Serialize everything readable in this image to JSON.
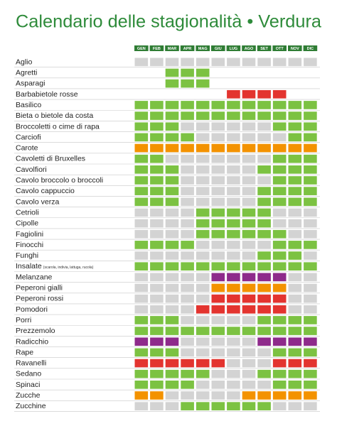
{
  "title": "Calendario delle stagionalità • Verdura",
  "months": [
    "GEN",
    "FEB",
    "MAR",
    "APR",
    "MAG",
    "GIU",
    "LUG",
    "AGO",
    "SET",
    "OTT",
    "NOV",
    "DIC"
  ],
  "rows": [
    {
      "name": "Aglio",
      "color": "#7cc242",
      "season": [
        0,
        0,
        0,
        0,
        0,
        0,
        0,
        0,
        0,
        0,
        0,
        0
      ]
    },
    {
      "name": "Agretti",
      "color": "#7cc242",
      "season": [
        null,
        null,
        1,
        1,
        1,
        null,
        null,
        null,
        null,
        null,
        null,
        null
      ]
    },
    {
      "name": "Asparagi",
      "color": "#7cc242",
      "season": [
        null,
        null,
        1,
        1,
        1,
        null,
        null,
        null,
        null,
        null,
        null,
        null
      ]
    },
    {
      "name": "Barbabietole rosse",
      "color": "#e3342f",
      "season": [
        null,
        null,
        null,
        null,
        null,
        null,
        1,
        1,
        1,
        1,
        null,
        null
      ]
    },
    {
      "name": "Basilico",
      "color": "#7cc242",
      "season": [
        1,
        1,
        1,
        1,
        1,
        1,
        1,
        1,
        1,
        1,
        1,
        1
      ]
    },
    {
      "name": "Bieta o bietole da costa",
      "color": "#7cc242",
      "season": [
        1,
        1,
        1,
        1,
        1,
        1,
        1,
        1,
        1,
        1,
        1,
        1
      ]
    },
    {
      "name": "Broccoletti o cime di rapa",
      "color": "#7cc242",
      "season": [
        1,
        1,
        1,
        0,
        0,
        0,
        0,
        0,
        0,
        1,
        1,
        1
      ]
    },
    {
      "name": "Carciofi",
      "color": "#7cc242",
      "season": [
        1,
        1,
        1,
        1,
        0,
        0,
        0,
        0,
        0,
        0,
        1,
        1
      ]
    },
    {
      "name": "Carote",
      "color": "#f39200",
      "season": [
        1,
        1,
        1,
        1,
        1,
        1,
        1,
        1,
        1,
        1,
        1,
        1
      ]
    },
    {
      "name": "Cavoletti di Bruxelles",
      "color": "#7cc242",
      "season": [
        1,
        1,
        0,
        0,
        0,
        0,
        0,
        0,
        0,
        1,
        1,
        1
      ]
    },
    {
      "name": "Cavolfiori",
      "color": "#7cc242",
      "season": [
        1,
        1,
        1,
        0,
        0,
        0,
        0,
        0,
        1,
        1,
        1,
        1
      ]
    },
    {
      "name": "Cavolo broccolo o broccoli",
      "color": "#7cc242",
      "season": [
        1,
        1,
        1,
        0,
        0,
        0,
        0,
        0,
        0,
        1,
        1,
        1
      ]
    },
    {
      "name": "Cavolo cappuccio",
      "color": "#7cc242",
      "season": [
        1,
        1,
        1,
        0,
        0,
        0,
        0,
        0,
        1,
        1,
        1,
        1
      ]
    },
    {
      "name": "Cavolo verza",
      "color": "#7cc242",
      "season": [
        1,
        1,
        1,
        0,
        0,
        0,
        0,
        0,
        1,
        1,
        1,
        1
      ]
    },
    {
      "name": "Cetrioli",
      "color": "#7cc242",
      "season": [
        0,
        0,
        0,
        0,
        1,
        1,
        1,
        1,
        1,
        0,
        0,
        0
      ]
    },
    {
      "name": "Cipolle",
      "color": "#7cc242",
      "season": [
        0,
        0,
        0,
        0,
        1,
        1,
        1,
        1,
        1,
        0,
        0,
        0
      ]
    },
    {
      "name": "Fagiolini",
      "color": "#7cc242",
      "season": [
        0,
        0,
        0,
        0,
        1,
        1,
        1,
        1,
        1,
        1,
        0,
        0
      ]
    },
    {
      "name": "Finocchi",
      "color": "#7cc242",
      "season": [
        1,
        1,
        1,
        1,
        0,
        0,
        0,
        0,
        0,
        1,
        1,
        1
      ]
    },
    {
      "name": "Funghi",
      "color": "#7cc242",
      "season": [
        0,
        0,
        0,
        0,
        0,
        0,
        0,
        0,
        1,
        1,
        1,
        0
      ]
    },
    {
      "name": "Insalate",
      "note": "(scarola, indivia, lattuga, rucola)",
      "color": "#7cc242",
      "season": [
        1,
        1,
        1,
        1,
        1,
        1,
        1,
        1,
        1,
        1,
        1,
        1
      ]
    },
    {
      "name": "Melanzane",
      "color": "#8e2a8b",
      "season": [
        0,
        0,
        0,
        0,
        0,
        1,
        1,
        1,
        1,
        1,
        0,
        0
      ]
    },
    {
      "name": "Peperoni gialli",
      "color": "#f39200",
      "season": [
        0,
        0,
        0,
        0,
        0,
        1,
        1,
        1,
        1,
        1,
        0,
        0
      ]
    },
    {
      "name": "Peperoni rossi",
      "color": "#e3342f",
      "season": [
        0,
        0,
        0,
        0,
        0,
        1,
        1,
        1,
        1,
        1,
        0,
        0
      ]
    },
    {
      "name": "Pomodori",
      "color": "#e3342f",
      "season": [
        0,
        0,
        0,
        0,
        1,
        1,
        1,
        1,
        1,
        1,
        0,
        0
      ]
    },
    {
      "name": "Porri",
      "color": "#7cc242",
      "season": [
        1,
        1,
        1,
        0,
        0,
        0,
        0,
        0,
        1,
        1,
        1,
        1
      ]
    },
    {
      "name": "Prezzemolo",
      "color": "#7cc242",
      "season": [
        1,
        1,
        1,
        1,
        1,
        1,
        1,
        1,
        1,
        1,
        1,
        1
      ]
    },
    {
      "name": "Radicchio",
      "color": "#8e2a8b",
      "season": [
        1,
        1,
        1,
        0,
        0,
        0,
        0,
        0,
        1,
        1,
        1,
        1
      ]
    },
    {
      "name": "Rape",
      "color": "#7cc242",
      "season": [
        1,
        1,
        1,
        0,
        0,
        0,
        0,
        0,
        0,
        1,
        1,
        1
      ]
    },
    {
      "name": "Ravanelli",
      "color": "#e3342f",
      "season": [
        1,
        1,
        1,
        1,
        1,
        1,
        0,
        0,
        0,
        1,
        1,
        1
      ]
    },
    {
      "name": "Sedano",
      "color": "#7cc242",
      "season": [
        1,
        1,
        1,
        1,
        1,
        0,
        0,
        0,
        1,
        1,
        1,
        1
      ]
    },
    {
      "name": "Spinaci",
      "color": "#7cc242",
      "season": [
        1,
        1,
        1,
        1,
        0,
        0,
        0,
        0,
        0,
        1,
        1,
        1
      ]
    },
    {
      "name": "Zucche",
      "color": "#f39200",
      "season": [
        1,
        1,
        0,
        0,
        0,
        0,
        0,
        1,
        1,
        1,
        1,
        1
      ]
    },
    {
      "name": "Zucchine",
      "color": "#7cc242",
      "season": [
        0,
        0,
        0,
        1,
        1,
        1,
        1,
        1,
        1,
        0,
        0,
        0
      ]
    }
  ]
}
